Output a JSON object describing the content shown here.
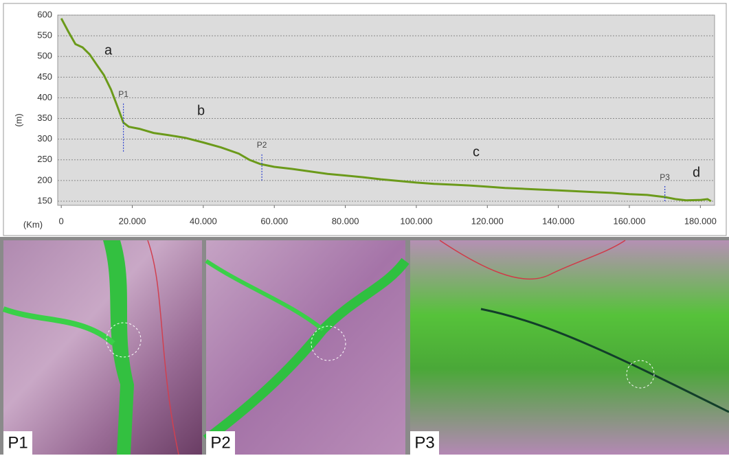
{
  "chart_data": {
    "type": "line",
    "xlabel": "(Km)",
    "ylabel": "(m)",
    "color": "#6b9a1a",
    "x": [
      0,
      2000,
      4000,
      6000,
      8000,
      10000,
      12000,
      14000,
      16000,
      17500,
      19000,
      22000,
      26000,
      30000,
      35000,
      40000,
      45000,
      50000,
      53000,
      56000,
      60000,
      65000,
      70000,
      75000,
      80000,
      85000,
      90000,
      95000,
      100000,
      105000,
      110000,
      115000,
      120000,
      125000,
      130000,
      135000,
      140000,
      145000,
      150000,
      155000,
      160000,
      165000,
      170000,
      173000,
      176000,
      180000,
      182000,
      183000
    ],
    "values": [
      592,
      560,
      530,
      522,
      505,
      480,
      455,
      420,
      375,
      340,
      330,
      325,
      315,
      310,
      303,
      292,
      280,
      265,
      250,
      240,
      233,
      228,
      222,
      216,
      212,
      208,
      203,
      199,
      195,
      192,
      190,
      188,
      185,
      182,
      180,
      178,
      176,
      174,
      172,
      170,
      167,
      165,
      160,
      155,
      152,
      153,
      155,
      150
    ],
    "xlim": [
      -1000,
      184000
    ],
    "ylim": [
      140,
      600
    ],
    "xticks": [
      0,
      {
        "value": 20000,
        "label": "20.000"
      },
      {
        "value": 40000,
        "label": "40.000"
      },
      {
        "value": 60000,
        "label": "60.000"
      },
      {
        "value": 80000,
        "label": "80.000"
      },
      {
        "value": 100000,
        "label": "100.000"
      },
      {
        "value": 120000,
        "label": "120.000"
      },
      {
        "value": 140000,
        "label": "140.000"
      },
      {
        "value": 160000,
        "label": "160.000"
      },
      {
        "value": 180000,
        "label": "180.000"
      }
    ],
    "yticks": [
      150,
      200,
      250,
      300,
      350,
      400,
      450,
      500,
      550,
      600
    ],
    "grid": true,
    "annotations": [
      "a",
      "b",
      "c",
      "d"
    ],
    "markers": [
      {
        "label": "P1",
        "x": 17500,
        "y_from": 270,
        "y_to": 388
      },
      {
        "label": "P2",
        "x": 56500,
        "y_from": 200,
        "y_to": 265
      },
      {
        "label": "P3",
        "x": 170000,
        "y_from": 150,
        "y_to": 187
      }
    ]
  },
  "panels": [
    "P1",
    "P2",
    "P3"
  ]
}
